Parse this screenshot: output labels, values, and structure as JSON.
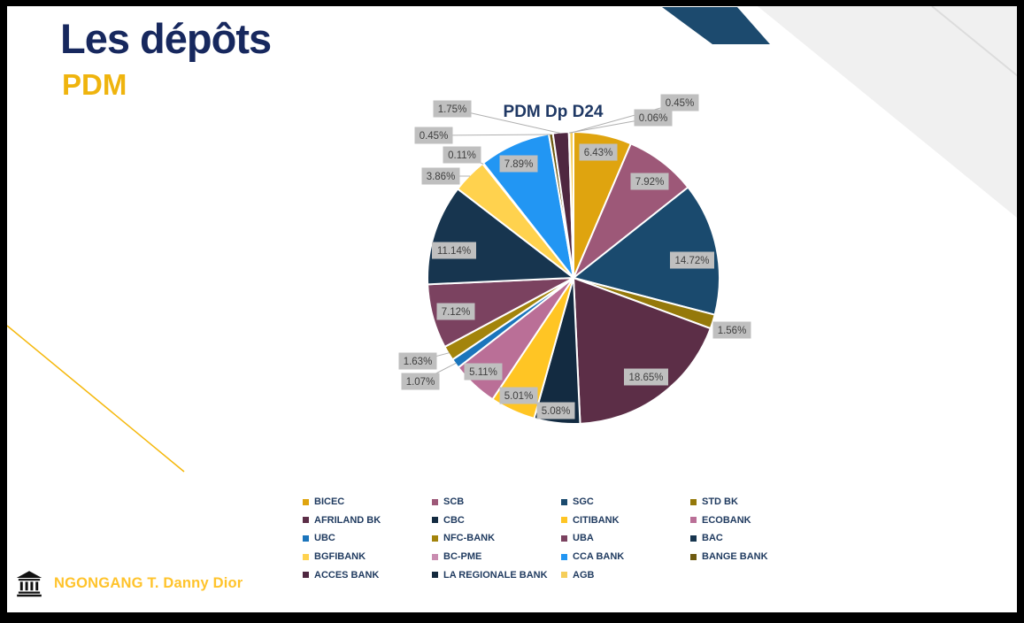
{
  "slide": {
    "title": "Les dépôts",
    "subtitle": "PDM",
    "footer": {
      "author": "NGONGANG T. Danny Dior"
    },
    "colors": {
      "title_navy": "#17285E",
      "subtitle_gold": "#EFB40E",
      "deco_navy": "#1C4A6E",
      "deco_gray_band": "#F0F0F0",
      "deco_gray_line": "#DCDCDC",
      "deco_gold_line": "#F5B80C",
      "label_bg": "#BFBFBF",
      "label_text": "#3F3F3F",
      "leader_line": "#B0B0B0",
      "legend_text": "#1F3A5F",
      "footer_gold": "#FFC32B"
    }
  },
  "chart_data": {
    "type": "pie",
    "title": "PDM Dp D24",
    "legend_position": "bottom",
    "legend_columns": 4,
    "start_angle_deg": 0,
    "direction": "clockwise",
    "center": [
      648,
      314
    ],
    "radius": 165,
    "slices": [
      {
        "label": "BICEC",
        "value": 6.43,
        "color": "#DFA40F",
        "label_pos": [
          676,
          172
        ],
        "leader": false
      },
      {
        "label": "SCB",
        "value": 7.92,
        "color": "#9D5878",
        "label_pos": [
          734,
          205
        ],
        "leader": false
      },
      {
        "label": "SGC",
        "value": 14.72,
        "color": "#1A4A6E",
        "label_pos": [
          782,
          294
        ],
        "leader": false
      },
      {
        "label": "STD BK",
        "value": 1.56,
        "color": "#95790A",
        "label_pos": [
          827,
          373
        ],
        "leader": false
      },
      {
        "label": "AFRILAND BK",
        "value": 18.65,
        "color": "#5C2E47",
        "label_pos": [
          730,
          426
        ],
        "leader": false
      },
      {
        "label": "CBC",
        "value": 5.08,
        "color": "#132B41",
        "label_pos": [
          628,
          464
        ],
        "leader": false
      },
      {
        "label": "CITIBANK",
        "value": 5.01,
        "color": "#FFC524",
        "label_pos": [
          586,
          447
        ],
        "leader": false
      },
      {
        "label": "ECOBANK",
        "value": 5.11,
        "color": "#BA6F97",
        "label_pos": [
          546,
          420
        ],
        "leader": false
      },
      {
        "label": "UBC",
        "value": 1.07,
        "color": "#1B75BC",
        "label_pos": [
          475,
          431
        ],
        "leader": true
      },
      {
        "label": "NFC-BANK",
        "value": 1.63,
        "color": "#A3840C",
        "label_pos": [
          472,
          408
        ],
        "leader": true
      },
      {
        "label": "UBA",
        "value": 7.12,
        "color": "#7B4260",
        "label_pos": [
          515,
          352
        ],
        "leader": false
      },
      {
        "label": "BAC",
        "value": 11.14,
        "color": "#17354F",
        "label_pos": [
          513,
          283
        ],
        "leader": false
      },
      {
        "label": "BGFIBANK",
        "value": 3.86,
        "color": "#FFD24E",
        "label_pos": [
          498,
          199
        ],
        "leader": true
      },
      {
        "label": "BC-PME",
        "value": 0.11,
        "color": "#C98CB0",
        "label_pos": [
          522,
          175
        ],
        "leader": true
      },
      {
        "label": "CCA BANK",
        "value": 7.89,
        "color": "#2296F3",
        "label_pos": [
          586,
          185
        ],
        "leader": false
      },
      {
        "label": "BANGE BANK",
        "value": 0.45,
        "color": "#6E5A10",
        "label_pos": [
          490,
          153
        ],
        "leader": true
      },
      {
        "label": "ACCES BANK",
        "value": 1.75,
        "color": "#4F2740",
        "label_pos": [
          511,
          123
        ],
        "leader": true
      },
      {
        "label": "LA REGIONALE BANK",
        "value": 0.06,
        "color": "#14293D",
        "label_pos": [
          738,
          133
        ],
        "leader": true
      },
      {
        "label": "AGB",
        "value": 0.45,
        "color": "#F5CE5A",
        "label_pos": [
          768,
          116
        ],
        "leader": true
      }
    ]
  }
}
